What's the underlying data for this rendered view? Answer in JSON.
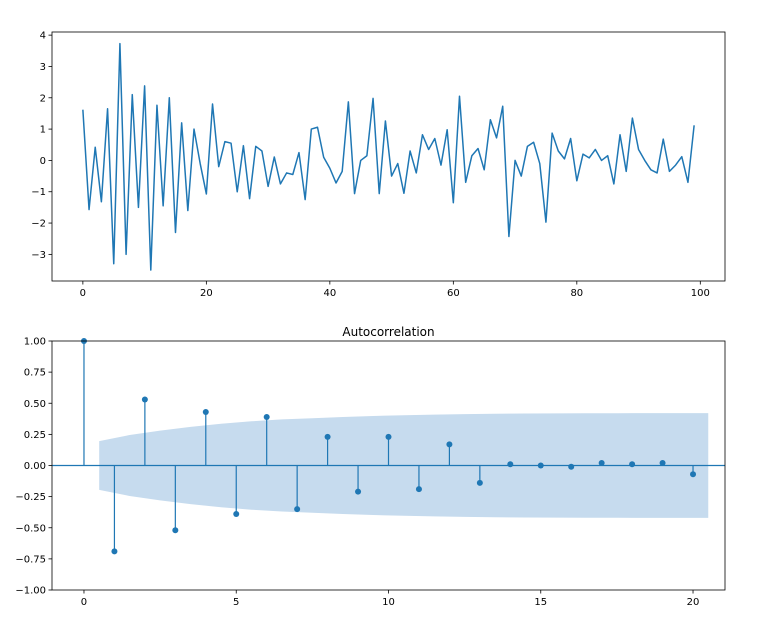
{
  "chart_data": [
    {
      "type": "line",
      "title": "",
      "xlabel": "",
      "ylabel": "",
      "xlim": [
        -5,
        104
      ],
      "ylim": [
        -3.85,
        4.1
      ],
      "xticks": [
        0,
        20,
        40,
        60,
        80,
        100
      ],
      "yticks": [
        -3,
        -2,
        -1,
        0,
        1,
        2,
        3,
        4
      ],
      "xtick_labels": [
        "0",
        "20",
        "40",
        "60",
        "80",
        "100"
      ],
      "ytick_labels": [
        "−3",
        "−2",
        "−1",
        "0",
        "1",
        "2",
        "3",
        "4"
      ],
      "color": "#1f77b4",
      "grid": false,
      "series": [
        {
          "x": [
            0,
            1,
            2,
            3,
            4,
            5,
            6,
            7,
            8,
            9,
            10,
            11,
            12,
            13,
            14,
            15,
            16,
            17,
            18,
            19,
            20,
            21,
            22,
            23,
            24,
            25,
            26,
            27,
            28,
            29,
            30,
            31,
            32,
            33,
            34,
            35,
            36,
            37,
            38,
            39,
            40,
            41,
            42,
            43,
            44,
            45,
            46,
            47,
            48,
            49,
            50,
            51,
            52,
            53,
            54,
            55,
            56,
            57,
            58,
            59,
            60,
            61,
            62,
            63,
            64,
            65,
            66,
            67,
            68,
            69,
            70,
            71,
            72,
            73,
            74,
            75,
            76,
            77,
            78,
            79,
            80,
            81,
            82,
            83,
            84,
            85,
            86,
            87,
            88,
            89,
            90,
            91,
            92,
            93,
            94,
            95,
            96,
            97,
            98,
            99
          ],
          "values": [
            1.62,
            -1.57,
            0.42,
            -1.32,
            1.65,
            -3.3,
            3.73,
            -3.0,
            2.1,
            -1.5,
            2.38,
            -3.5,
            1.76,
            -1.45,
            2.0,
            -2.3,
            1.2,
            -1.6,
            1.0,
            -0.1,
            -1.07,
            1.8,
            -0.2,
            0.6,
            0.55,
            -1.0,
            0.47,
            -1.22,
            0.45,
            0.3,
            -0.83,
            0.11,
            -0.75,
            -0.4,
            -0.45,
            0.25,
            -1.25,
            1.0,
            1.06,
            0.1,
            -0.25,
            -0.72,
            -0.35,
            1.87,
            -1.06,
            0.0,
            0.15,
            1.98,
            -1.06,
            1.26,
            -0.5,
            -0.1,
            -1.05,
            0.3,
            -0.4,
            0.82,
            0.35,
            0.7,
            -0.15,
            0.98,
            -1.35,
            2.05,
            -0.7,
            0.15,
            0.38,
            -0.3,
            1.3,
            0.72,
            1.73,
            -2.43,
            0.0,
            -0.5,
            0.45,
            0.58,
            -0.1,
            -1.97,
            0.87,
            0.3,
            0.05,
            0.7,
            -0.65,
            0.2,
            0.08,
            0.35,
            0.0,
            0.15,
            -0.75,
            0.82,
            -0.35,
            1.35,
            0.35,
            0.0,
            -0.3,
            -0.4,
            0.68,
            -0.35,
            -0.15,
            0.12,
            -0.7,
            1.12
          ]
        }
      ]
    },
    {
      "type": "stem",
      "title": "Autocorrelation",
      "xlabel": "",
      "ylabel": "",
      "xlim": [
        -1.05,
        21.05
      ],
      "ylim": [
        -1.0,
        1.0
      ],
      "xticks": [
        0,
        5,
        10,
        15,
        20
      ],
      "yticks": [
        -1.0,
        -0.75,
        -0.5,
        -0.25,
        0.0,
        0.25,
        0.5,
        0.75,
        1.0
      ],
      "xtick_labels": [
        "0",
        "5",
        "10",
        "15",
        "20"
      ],
      "ytick_labels": [
        "−1.00",
        "−0.75",
        "−0.50",
        "−0.25",
        "0.00",
        "0.25",
        "0.50",
        "0.75",
        "1.00"
      ],
      "color": "#1f77b4",
      "band_color": "#c6dbee",
      "grid": false,
      "lags": [
        0,
        1,
        2,
        3,
        4,
        5,
        6,
        7,
        8,
        9,
        10,
        11,
        12,
        13,
        14,
        15,
        16,
        17,
        18,
        19,
        20
      ],
      "values": [
        1.0,
        -0.69,
        0.53,
        -0.52,
        0.43,
        -0.39,
        0.39,
        -0.35,
        0.23,
        -0.21,
        0.23,
        -0.19,
        0.17,
        -0.14,
        0.01,
        0.0,
        -0.01,
        0.02,
        0.01,
        0.02,
        -0.07
      ],
      "confint": {
        "x": [
          0.5,
          1.5,
          2.5,
          3.5,
          4.5,
          5.5,
          6.5,
          7.5,
          8.5,
          9.5,
          10.5,
          11.5,
          12.5,
          13.5,
          14.5,
          15.5,
          16.5,
          17.5,
          18.5,
          19.5,
          20.5
        ],
        "upper": [
          0.196,
          0.245,
          0.28,
          0.31,
          0.335,
          0.355,
          0.37,
          0.38,
          0.39,
          0.398,
          0.404,
          0.409,
          0.413,
          0.416,
          0.418,
          0.419,
          0.42,
          0.42,
          0.421,
          0.421,
          0.421
        ]
      }
    }
  ]
}
